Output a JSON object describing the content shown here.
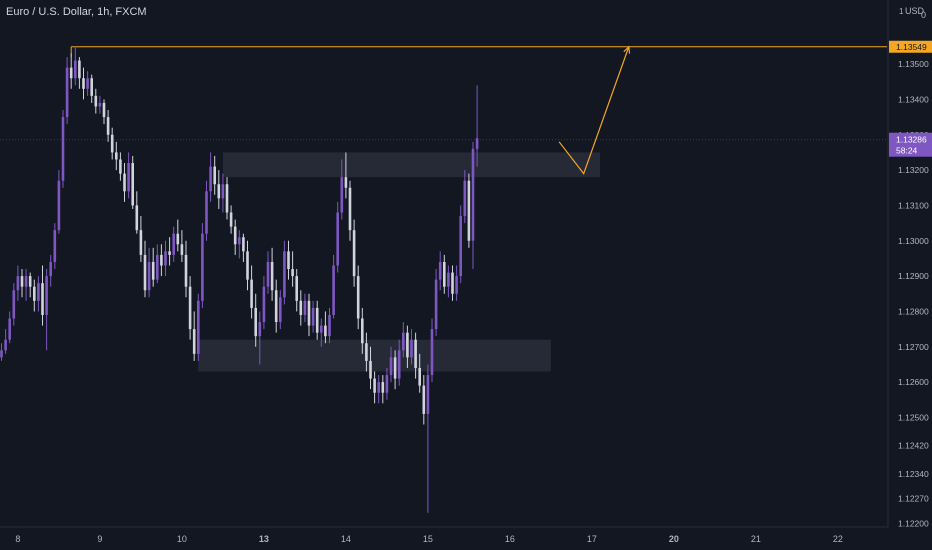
{
  "header": {
    "symbol_title": "Euro / U.S. Dollar, 1h, FXCM",
    "currency": "USD",
    "axis_corner": [
      "1",
      "0"
    ]
  },
  "colors": {
    "background": "#131722",
    "grid": "#1e222d",
    "candle_up": "#7e57c2",
    "candle_down": "#d1d4dc",
    "zone_fill": "#2a2e39",
    "annotation": "#f5a623",
    "price_badge": "#7e57c2",
    "axis_text": "#b2b5be"
  },
  "chart_data": {
    "type": "candlestick",
    "title": "",
    "xlabel": "",
    "ylabel": "",
    "ylim": [
      1.1219,
      1.1367
    ],
    "grid": false,
    "price_ticks": [
      1.135,
      1.134,
      1.133,
      1.132,
      1.131,
      1.13,
      1.129,
      1.128,
      1.127,
      1.126,
      1.125,
      1.1242,
      1.1234,
      1.1227,
      1.122
    ],
    "price_tick_labels": [
      "1.13500",
      "1.13400",
      "1.13300",
      "1.13200",
      "1.13100",
      "1.13000",
      "1.12900",
      "1.12800",
      "1.12700",
      "1.12600",
      "1.12500",
      "1.12420",
      "1.12340",
      "1.12270",
      "1.12200"
    ],
    "date_ticks": [
      {
        "label": "8",
        "index": 4
      },
      {
        "label": "9",
        "index": 24
      },
      {
        "label": "10",
        "index": 44
      },
      {
        "label": "13",
        "index": 64
      },
      {
        "label": "14",
        "index": 84
      },
      {
        "label": "15",
        "index": 104
      },
      {
        "label": "16",
        "index": 124
      },
      {
        "label": "17",
        "index": 144
      },
      {
        "label": "20",
        "index": 164
      },
      {
        "label": "21",
        "index": 184
      },
      {
        "label": "22",
        "index": 204
      }
    ],
    "bold_date_ticks": [
      "13",
      "20"
    ],
    "candles": [
      [
        1.1267,
        1.1271,
        1.1266,
        1.1269
      ],
      [
        1.1269,
        1.1275,
        1.1268,
        1.1272
      ],
      [
        1.1272,
        1.128,
        1.1271,
        1.1278
      ],
      [
        1.1278,
        1.1288,
        1.1276,
        1.1286
      ],
      [
        1.1286,
        1.1293,
        1.1283,
        1.129
      ],
      [
        1.129,
        1.1292,
        1.1284,
        1.1287
      ],
      [
        1.1287,
        1.1292,
        1.1283,
        1.129
      ],
      [
        1.129,
        1.1291,
        1.1284,
        1.1287
      ],
      [
        1.1287,
        1.1289,
        1.128,
        1.1283
      ],
      [
        1.1283,
        1.129,
        1.128,
        1.1288
      ],
      [
        1.1288,
        1.1293,
        1.1276,
        1.1279
      ],
      [
        1.1279,
        1.1292,
        1.1269,
        1.129
      ],
      [
        1.129,
        1.1296,
        1.1287,
        1.1294
      ],
      [
        1.1294,
        1.1305,
        1.1292,
        1.1303
      ],
      [
        1.1303,
        1.132,
        1.1302,
        1.1317
      ],
      [
        1.1317,
        1.1337,
        1.1315,
        1.1335
      ],
      [
        1.1335,
        1.1352,
        1.1333,
        1.1349
      ],
      [
        1.1349,
        1.1353,
        1.1343,
        1.1346
      ],
      [
        1.1346,
        1.1355,
        1.1344,
        1.1351
      ],
      [
        1.1351,
        1.1352,
        1.1343,
        1.1346
      ],
      [
        1.1346,
        1.1349,
        1.134,
        1.1343
      ],
      [
        1.1343,
        1.1348,
        1.1341,
        1.1346
      ],
      [
        1.1346,
        1.1347,
        1.1339,
        1.1341
      ],
      [
        1.1341,
        1.1343,
        1.1336,
        1.1338
      ],
      [
        1.1338,
        1.1341,
        1.1336,
        1.1339
      ],
      [
        1.1339,
        1.134,
        1.1333,
        1.1335
      ],
      [
        1.1335,
        1.1337,
        1.1328,
        1.133
      ],
      [
        1.133,
        1.1332,
        1.1323,
        1.1325
      ],
      [
        1.1325,
        1.1328,
        1.132,
        1.1323
      ],
      [
        1.1323,
        1.1325,
        1.1317,
        1.1319
      ],
      [
        1.1319,
        1.1322,
        1.1311,
        1.1314
      ],
      [
        1.1314,
        1.1325,
        1.1312,
        1.1322
      ],
      [
        1.1322,
        1.1324,
        1.1309,
        1.131
      ],
      [
        1.131,
        1.1314,
        1.1302,
        1.1303
      ],
      [
        1.1303,
        1.1307,
        1.1294,
        1.1296
      ],
      [
        1.1296,
        1.13,
        1.1284,
        1.1286
      ],
      [
        1.1286,
        1.1298,
        1.1284,
        1.1294
      ],
      [
        1.1294,
        1.1298,
        1.1287,
        1.1289
      ],
      [
        1.1289,
        1.1299,
        1.1288,
        1.1296
      ],
      [
        1.1296,
        1.1299,
        1.129,
        1.1293
      ],
      [
        1.1293,
        1.13,
        1.129,
        1.1297
      ],
      [
        1.1297,
        1.1301,
        1.1293,
        1.1296
      ],
      [
        1.1296,
        1.1304,
        1.1294,
        1.1302
      ],
      [
        1.1302,
        1.1306,
        1.1297,
        1.1299
      ],
      [
        1.1299,
        1.1303,
        1.1294,
        1.1296
      ],
      [
        1.1296,
        1.13,
        1.1284,
        1.1287
      ],
      [
        1.1287,
        1.129,
        1.1272,
        1.1275
      ],
      [
        1.1275,
        1.128,
        1.1266,
        1.1268
      ],
      [
        1.1268,
        1.1285,
        1.1266,
        1.1283
      ],
      [
        1.1283,
        1.1305,
        1.1281,
        1.1302
      ],
      [
        1.1302,
        1.1317,
        1.13,
        1.1314
      ],
      [
        1.1314,
        1.1325,
        1.1311,
        1.1321
      ],
      [
        1.1321,
        1.1324,
        1.1313,
        1.1316
      ],
      [
        1.1316,
        1.132,
        1.1309,
        1.1312
      ],
      [
        1.1312,
        1.1319,
        1.1308,
        1.1316
      ],
      [
        1.1316,
        1.1318,
        1.1306,
        1.1308
      ],
      [
        1.1308,
        1.131,
        1.1302,
        1.1304
      ],
      [
        1.1304,
        1.1306,
        1.1296,
        1.1299
      ],
      [
        1.1299,
        1.1303,
        1.1295,
        1.1301
      ],
      [
        1.1301,
        1.1302,
        1.1294,
        1.1297
      ],
      [
        1.1297,
        1.13,
        1.1286,
        1.1289
      ],
      [
        1.1289,
        1.1293,
        1.1278,
        1.1281
      ],
      [
        1.1281,
        1.1285,
        1.127,
        1.1273
      ],
      [
        1.1273,
        1.128,
        1.1265,
        1.1277
      ],
      [
        1.1277,
        1.129,
        1.1275,
        1.1287
      ],
      [
        1.1287,
        1.1297,
        1.1285,
        1.1294
      ],
      [
        1.1294,
        1.1298,
        1.1283,
        1.1286
      ],
      [
        1.1286,
        1.1289,
        1.1274,
        1.1277
      ],
      [
        1.1277,
        1.1286,
        1.1275,
        1.1284
      ],
      [
        1.1284,
        1.13,
        1.1282,
        1.1297
      ],
      [
        1.1297,
        1.13,
        1.1289,
        1.1292
      ],
      [
        1.1292,
        1.1297,
        1.1287,
        1.129
      ],
      [
        1.129,
        1.1292,
        1.128,
        1.1283
      ],
      [
        1.1283,
        1.1286,
        1.1276,
        1.1279
      ],
      [
        1.1279,
        1.1285,
        1.1277,
        1.1283
      ],
      [
        1.1283,
        1.1285,
        1.1273,
        1.1276
      ],
      [
        1.1276,
        1.1283,
        1.1274,
        1.1281
      ],
      [
        1.1281,
        1.1283,
        1.1272,
        1.1274
      ],
      [
        1.1274,
        1.1278,
        1.127,
        1.1276
      ],
      [
        1.1276,
        1.128,
        1.1271,
        1.1273
      ],
      [
        1.1273,
        1.1281,
        1.1271,
        1.1279
      ],
      [
        1.1279,
        1.1296,
        1.1278,
        1.1293
      ],
      [
        1.1293,
        1.1311,
        1.1291,
        1.1308
      ],
      [
        1.1308,
        1.1323,
        1.1306,
        1.1318
      ],
      [
        1.1318,
        1.1325,
        1.1312,
        1.1315
      ],
      [
        1.1315,
        1.1317,
        1.13,
        1.1303
      ],
      [
        1.1303,
        1.1306,
        1.1287,
        1.129
      ],
      [
        1.129,
        1.1293,
        1.1275,
        1.1278
      ],
      [
        1.1278,
        1.1281,
        1.1268,
        1.1271
      ],
      [
        1.1271,
        1.1274,
        1.1263,
        1.1266
      ],
      [
        1.1266,
        1.127,
        1.1258,
        1.1261
      ],
      [
        1.1261,
        1.1263,
        1.1254,
        1.1257
      ],
      [
        1.1257,
        1.1262,
        1.1254,
        1.126
      ],
      [
        1.126,
        1.1262,
        1.1254,
        1.1257
      ],
      [
        1.1257,
        1.1264,
        1.1255,
        1.1262
      ],
      [
        1.1262,
        1.127,
        1.126,
        1.1267
      ],
      [
        1.1267,
        1.1269,
        1.1258,
        1.1261
      ],
      [
        1.1261,
        1.1272,
        1.1259,
        1.1269
      ],
      [
        1.1269,
        1.1277,
        1.1267,
        1.1274
      ],
      [
        1.1274,
        1.1276,
        1.1264,
        1.1267
      ],
      [
        1.1267,
        1.1275,
        1.1265,
        1.1272
      ],
      [
        1.1272,
        1.1274,
        1.1261,
        1.1264
      ],
      [
        1.1264,
        1.1268,
        1.1257,
        1.1259
      ],
      [
        1.1259,
        1.1262,
        1.1248,
        1.1251
      ],
      [
        1.1251,
        1.1265,
        1.1223,
        1.1262
      ],
      [
        1.1262,
        1.1278,
        1.126,
        1.1275
      ],
      [
        1.1275,
        1.1292,
        1.1273,
        1.1289
      ],
      [
        1.1289,
        1.1297,
        1.1286,
        1.1294
      ],
      [
        1.1294,
        1.1296,
        1.1285,
        1.1287
      ],
      [
        1.1287,
        1.1293,
        1.1284,
        1.1291
      ],
      [
        1.1291,
        1.1293,
        1.1283,
        1.1285
      ],
      [
        1.1285,
        1.1293,
        1.1283,
        1.129
      ],
      [
        1.129,
        1.131,
        1.1288,
        1.1307
      ],
      [
        1.1307,
        1.132,
        1.1305,
        1.1317
      ],
      [
        1.1317,
        1.1319,
        1.1298,
        1.13
      ],
      [
        1.13,
        1.1328,
        1.1292,
        1.1326
      ],
      [
        1.1326,
        1.1344,
        1.1321,
        1.1329
      ]
    ],
    "zones": [
      {
        "from_index": 54,
        "to_index": 146,
        "top": 1.1325,
        "bottom": 1.1318
      },
      {
        "from_index": 48,
        "to_index": 134,
        "top": 1.1272,
        "bottom": 1.1263
      }
    ],
    "target_line": {
      "price": 1.13549,
      "from_index": 17
    },
    "current_price_line": {
      "price": 1.13286
    },
    "projection": {
      "points": [
        {
          "index": 136,
          "price": 1.1328
        },
        {
          "index": 142,
          "price": 1.1319
        },
        {
          "index": 153,
          "price": 1.13549
        }
      ]
    },
    "price_badges": {
      "target": {
        "price": 1.13549,
        "label": "1.13549"
      },
      "current": {
        "price": 1.13286,
        "label": "1.13286",
        "countdown": "58:24"
      }
    }
  }
}
